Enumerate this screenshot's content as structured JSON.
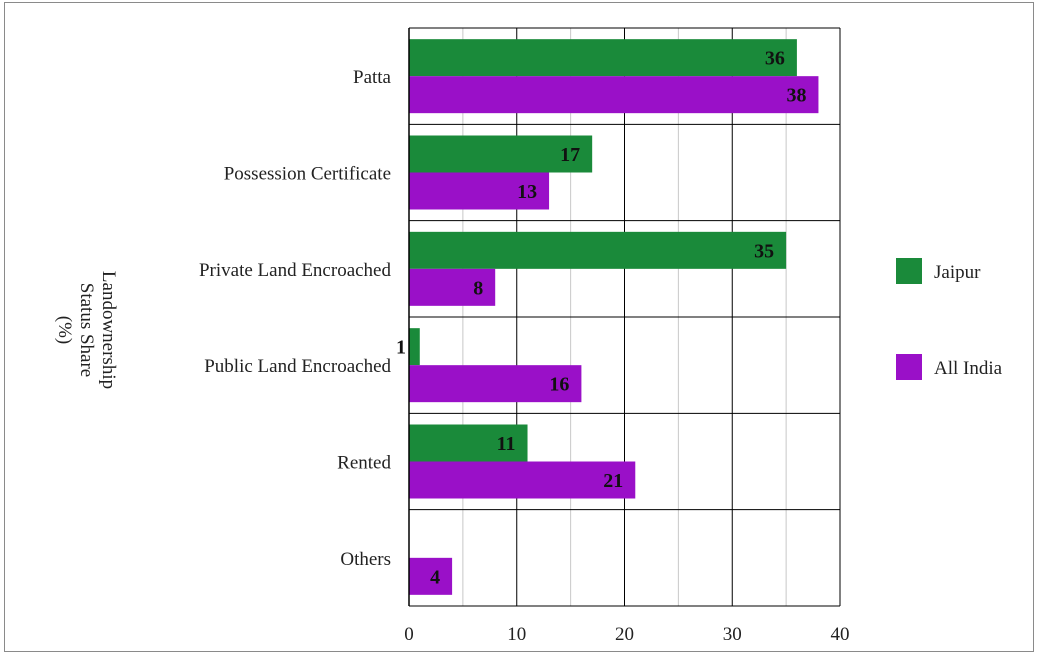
{
  "chart_data": {
    "type": "bar",
    "orientation": "horizontal",
    "ylabel": "Landownership Status Share (%)",
    "ylabel_lines": [
      "Landownership",
      "Status Share",
      "(%)"
    ],
    "categories": [
      "Patta",
      "Possession Certificate",
      "Private Land Encroached",
      "Public Land Encroached",
      "Rented",
      "Others"
    ],
    "series": [
      {
        "name": "Jaipur",
        "color": "#1a8a3a",
        "values": [
          36,
          17,
          35,
          1,
          11,
          0
        ],
        "labels": [
          "36",
          "17",
          "35",
          "1",
          "11",
          ""
        ]
      },
      {
        "name": "All India",
        "color": "#9a10c8",
        "values": [
          38,
          13,
          8,
          16,
          21,
          4
        ],
        "labels": [
          "38",
          "13",
          "8",
          "16",
          "21",
          "4"
        ]
      }
    ],
    "xlim": [
      0,
      40
    ],
    "xticks": [
      "0",
      "10",
      "20",
      "30",
      "40"
    ],
    "grid": true,
    "legend_position": "right"
  }
}
